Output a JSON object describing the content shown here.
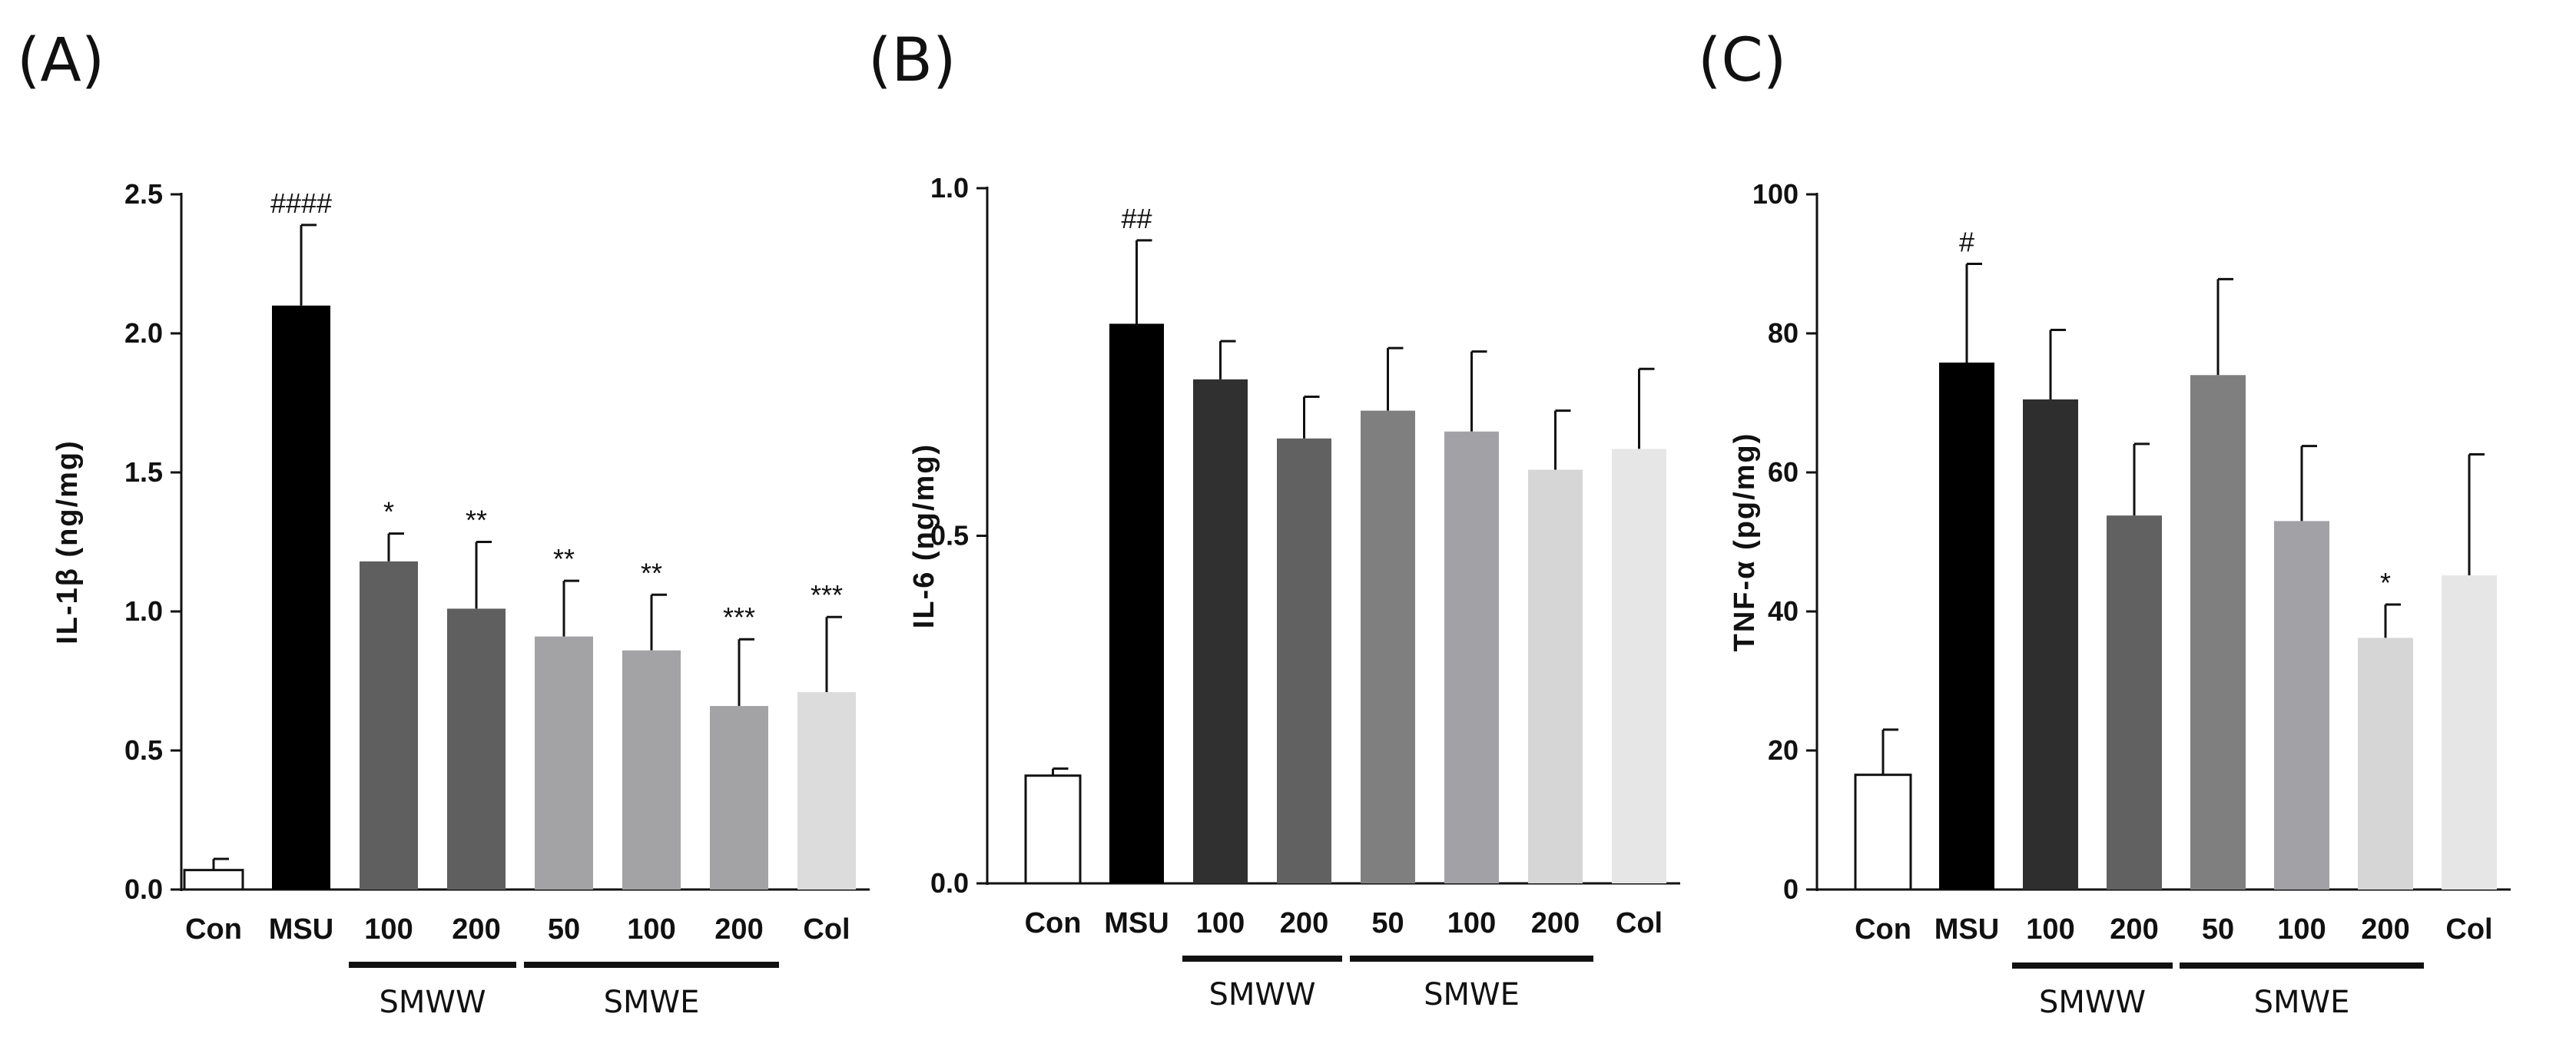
{
  "chart_data": [
    {
      "type": "bar",
      "panel": "(A)",
      "ylabel": "IL-1β  (ng/mg)",
      "ylim": [
        0,
        2.5
      ],
      "yticks": [
        0.0,
        0.5,
        1.0,
        1.5,
        2.0,
        2.5
      ],
      "ytick_labels": [
        "0.0",
        "0.5",
        "1.0",
        "1.5",
        "2.0",
        "2.5"
      ],
      "categories": [
        "Con",
        "MSU",
        "100",
        "200",
        "50",
        "100",
        "200",
        "Col"
      ],
      "values": [
        0.07,
        2.1,
        1.18,
        1.01,
        0.91,
        0.86,
        0.66,
        0.71
      ],
      "errors": [
        0.04,
        0.29,
        0.1,
        0.24,
        0.2,
        0.2,
        0.24,
        0.27
      ],
      "colors": [
        "#ffffff",
        "#000000",
        "#5f5f5f",
        "#5f5f5f",
        "#a3a3a6",
        "#a3a3a6",
        "#a3a3a6",
        "#dcdcdc"
      ],
      "significance": [
        "",
        "####",
        "*",
        "**",
        "**",
        "**",
        "***",
        "***"
      ],
      "groups": [
        {
          "label": "SMWW",
          "start": 2,
          "end": 3
        },
        {
          "label": "SMWE",
          "start": 4,
          "end": 6
        }
      ]
    },
    {
      "type": "bar",
      "panel": "(B)",
      "ylabel": "IL-6  (ng/mg)",
      "ylim": [
        0,
        1.0
      ],
      "yticks": [
        0.0,
        0.5,
        1.0
      ],
      "ytick_labels": [
        "0.0",
        "0.5",
        "1.0"
      ],
      "categories": [
        "Con",
        "MSU",
        "100",
        "200",
        "50",
        "100",
        "200",
        "Col"
      ],
      "values": [
        0.155,
        0.805,
        0.725,
        0.64,
        0.68,
        0.65,
        0.595,
        0.625
      ],
      "errors": [
        0.01,
        0.12,
        0.055,
        0.06,
        0.09,
        0.115,
        0.085,
        0.115
      ],
      "colors": [
        "#ffffff",
        "#000000",
        "#303030",
        "#616161",
        "#7f7f7f",
        "#a2a2a6",
        "#d6d6d6",
        "#e6e6e6"
      ],
      "significance": [
        "",
        "##",
        "",
        "",
        "",
        "",
        "",
        ""
      ],
      "groups": [
        {
          "label": "SMWW",
          "start": 2,
          "end": 3
        },
        {
          "label": "SMWE",
          "start": 4,
          "end": 6
        }
      ]
    },
    {
      "type": "bar",
      "panel": "(C)",
      "ylabel": "TNF-α  (pg/mg)",
      "ylim": [
        0,
        100
      ],
      "yticks": [
        0,
        20,
        40,
        60,
        80,
        100
      ],
      "ytick_labels": [
        "0",
        "20",
        "40",
        "60",
        "80",
        "100"
      ],
      "categories": [
        "Con",
        "MSU",
        "100",
        "200",
        "50",
        "100",
        "200",
        "Col"
      ],
      "values": [
        16.5,
        75.8,
        70.5,
        53.8,
        74.0,
        53.0,
        36.2,
        45.2
      ],
      "errors": [
        6.5,
        14.2,
        10.0,
        10.3,
        13.8,
        10.8,
        4.8,
        17.4
      ],
      "colors": [
        "#ffffff",
        "#000000",
        "#2e2e2e",
        "#616161",
        "#7f7f7f",
        "#a2a2a6",
        "#d6d6d6",
        "#e6e6e6"
      ],
      "significance": [
        "",
        "#",
        "",
        "",
        "",
        "",
        "*",
        ""
      ],
      "groups": [
        {
          "label": "SMWW",
          "start": 2,
          "end": 3
        },
        {
          "label": "SMWE",
          "start": 4,
          "end": 6
        }
      ]
    }
  ]
}
